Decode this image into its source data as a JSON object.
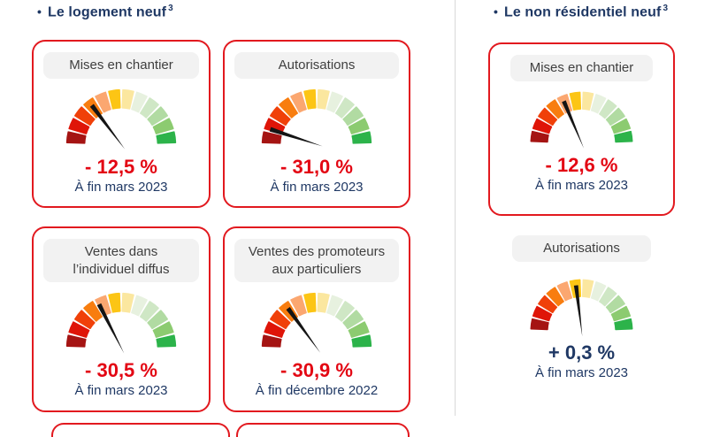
{
  "sections": {
    "left": {
      "bullet": "•",
      "title": "Le logement neuf",
      "superscript": "3"
    },
    "right": {
      "bullet": "•",
      "title": "Le non résidentiel neuf",
      "superscript": "3"
    }
  },
  "gauge_style": {
    "segment_colors": [
      "#A51413",
      "#DF1508",
      "#F04009",
      "#F87D0F",
      "#FBA770",
      "#FCC515",
      "#FBE79F",
      "#E7F1DF",
      "#CFE7C5",
      "#B1DBA2",
      "#8CCB70",
      "#2CB34A"
    ],
    "needle_color": "#141414",
    "value_negative_color": "#e30613",
    "value_positive_color": "#1f3864",
    "card_border_color": "#e2191f"
  },
  "cards": [
    {
      "title_line1": "Mises en chantier",
      "title_line2": "",
      "value": "- 12,5 %",
      "value_color": "#e30613",
      "date": "À fin mars 2023",
      "needle_angle_deg": 127,
      "bordered": true
    },
    {
      "title_line1": "Autorisations",
      "title_line2": "",
      "value": "- 31,0 %",
      "value_color": "#e30613",
      "date": "À fin mars 2023",
      "needle_angle_deg": 162,
      "bordered": true
    },
    {
      "title_line1": "Ventes dans",
      "title_line2": "l’individuel diffus",
      "value": "- 30,5 %",
      "value_color": "#e30613",
      "date": "À fin mars 2023",
      "needle_angle_deg": 117,
      "bordered": true
    },
    {
      "title_line1": "Ventes des promoteurs",
      "title_line2": "aux particuliers",
      "value": "- 30,9 %",
      "value_color": "#e30613",
      "date": "À fin décembre 2022",
      "needle_angle_deg": 126,
      "bordered": true
    },
    {
      "title_line1": "Mises en chantier",
      "title_line2": "",
      "value": "- 12,6 %",
      "value_color": "#e30613",
      "date": "À fin mars 2023",
      "needle_angle_deg": 113,
      "bordered": true
    },
    {
      "title_line1": "Autorisations",
      "title_line2": "",
      "value": "+ 0,3 %",
      "value_color": "#1f3864",
      "date": "À fin mars 2023",
      "needle_angle_deg": 97,
      "bordered": false
    }
  ],
  "chart_data": [
    {
      "type": "gauge",
      "group": "Le logement neuf",
      "title": "Mises en chantier",
      "value_label": "- 12,5 %",
      "value_percent": -12.5,
      "period": "À fin mars 2023",
      "needle_angle_deg": 127,
      "scale": {
        "segments": 12,
        "span_deg": 180,
        "from": "red (worst, left)",
        "to": "green (best, right)"
      }
    },
    {
      "type": "gauge",
      "group": "Le logement neuf",
      "title": "Autorisations",
      "value_label": "- 31,0 %",
      "value_percent": -31.0,
      "period": "À fin mars 2023",
      "needle_angle_deg": 162,
      "scale": {
        "segments": 12,
        "span_deg": 180,
        "from": "red (worst, left)",
        "to": "green (best, right)"
      }
    },
    {
      "type": "gauge",
      "group": "Le logement neuf",
      "title": "Ventes dans l’individuel diffus",
      "value_label": "- 30,5 %",
      "value_percent": -30.5,
      "period": "À fin mars 2023",
      "needle_angle_deg": 117,
      "scale": {
        "segments": 12,
        "span_deg": 180,
        "from": "red (worst, left)",
        "to": "green (best, right)"
      }
    },
    {
      "type": "gauge",
      "group": "Le logement neuf",
      "title": "Ventes des promoteurs aux particuliers",
      "value_label": "- 30,9 %",
      "value_percent": -30.9,
      "period": "À fin décembre 2022",
      "needle_angle_deg": 126,
      "scale": {
        "segments": 12,
        "span_deg": 180,
        "from": "red (worst, left)",
        "to": "green (best, right)"
      }
    },
    {
      "type": "gauge",
      "group": "Le non résidentiel neuf",
      "title": "Mises en chantier",
      "value_label": "- 12,6 %",
      "value_percent": -12.6,
      "period": "À fin mars 2023",
      "needle_angle_deg": 113,
      "scale": {
        "segments": 12,
        "span_deg": 180,
        "from": "red (worst, left)",
        "to": "green (best, right)"
      }
    },
    {
      "type": "gauge",
      "group": "Le non résidentiel neuf",
      "title": "Autorisations",
      "value_label": "+ 0,3 %",
      "value_percent": 0.3,
      "period": "À fin mars 2023",
      "needle_angle_deg": 97,
      "scale": {
        "segments": 12,
        "span_deg": 180,
        "from": "red (worst, left)",
        "to": "green (best, right)"
      }
    }
  ]
}
